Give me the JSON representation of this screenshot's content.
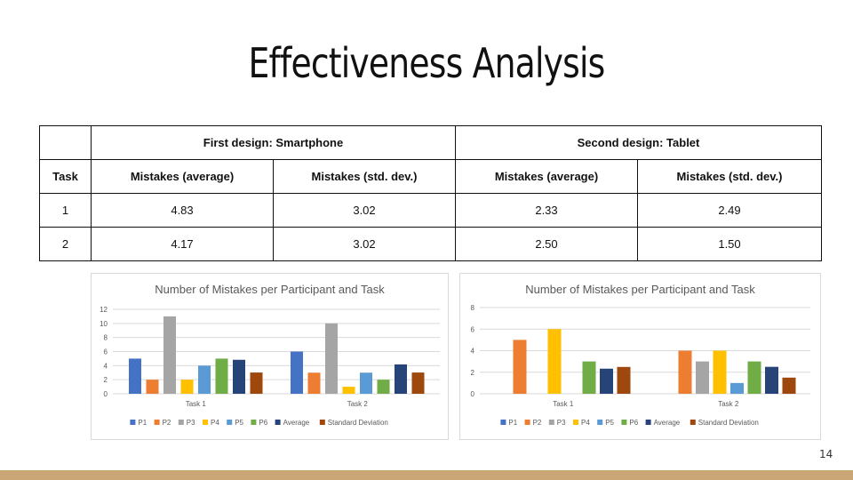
{
  "slide": {
    "title": "Effectiveness Analysis",
    "page_number": "14",
    "footer_color": "#caa575"
  },
  "table": {
    "group_headers": [
      "",
      "First design: Smartphone",
      "Second design: Tablet"
    ],
    "column_headers": [
      "Task",
      "Mistakes (average)",
      "Mistakes (std. dev.)",
      "Mistakes (average)",
      "Mistakes (std. dev.)"
    ],
    "rows": [
      [
        "1",
        "4.83",
        "3.02",
        "2.33",
        "2.49"
      ],
      [
        "2",
        "4.17",
        "3.02",
        "2.50",
        "1.50"
      ]
    ]
  },
  "chart_data": [
    {
      "type": "bar",
      "title": "Number of Mistakes per Participant and Task",
      "categories": [
        "Task 1",
        "Task 2"
      ],
      "ylim": [
        0,
        12
      ],
      "yticks": [
        0,
        2,
        4,
        6,
        8,
        10,
        12
      ],
      "grid": true,
      "legend": "bottom",
      "series": [
        {
          "name": "P1",
          "color": "#4472c4",
          "values": [
            5,
            6
          ]
        },
        {
          "name": "P2",
          "color": "#ed7d31",
          "values": [
            2,
            3
          ]
        },
        {
          "name": "P3",
          "color": "#a5a5a5",
          "values": [
            11,
            10
          ]
        },
        {
          "name": "P4",
          "color": "#ffc000",
          "values": [
            2,
            1
          ]
        },
        {
          "name": "P5",
          "color": "#5b9bd5",
          "values": [
            4,
            3
          ]
        },
        {
          "name": "P6",
          "color": "#70ad47",
          "values": [
            5,
            2
          ]
        },
        {
          "name": "Average",
          "color": "#264478",
          "values": [
            4.83,
            4.17
          ]
        },
        {
          "name": "Standard Deviation",
          "color": "#9e480e",
          "values": [
            3.02,
            3.02
          ]
        }
      ]
    },
    {
      "type": "bar",
      "title": "Number of Mistakes per Participant and Task",
      "categories": [
        "Task 1",
        "Task 2"
      ],
      "ylim": [
        0,
        8
      ],
      "yticks": [
        0,
        2,
        4,
        6,
        8
      ],
      "grid": true,
      "legend": "bottom",
      "series": [
        {
          "name": "P1",
          "color": "#4472c4",
          "values": [
            0,
            0
          ]
        },
        {
          "name": "P2",
          "color": "#ed7d31",
          "values": [
            5,
            4
          ]
        },
        {
          "name": "P3",
          "color": "#a5a5a5",
          "values": [
            0,
            3
          ]
        },
        {
          "name": "P4",
          "color": "#ffc000",
          "values": [
            6,
            4
          ]
        },
        {
          "name": "P5",
          "color": "#5b9bd5",
          "values": [
            0,
            1
          ]
        },
        {
          "name": "P6",
          "color": "#70ad47",
          "values": [
            3,
            3
          ]
        },
        {
          "name": "Average",
          "color": "#264478",
          "values": [
            2.33,
            2.5
          ]
        },
        {
          "name": "Standard Deviation",
          "color": "#9e480e",
          "values": [
            2.49,
            1.5
          ]
        }
      ]
    }
  ]
}
